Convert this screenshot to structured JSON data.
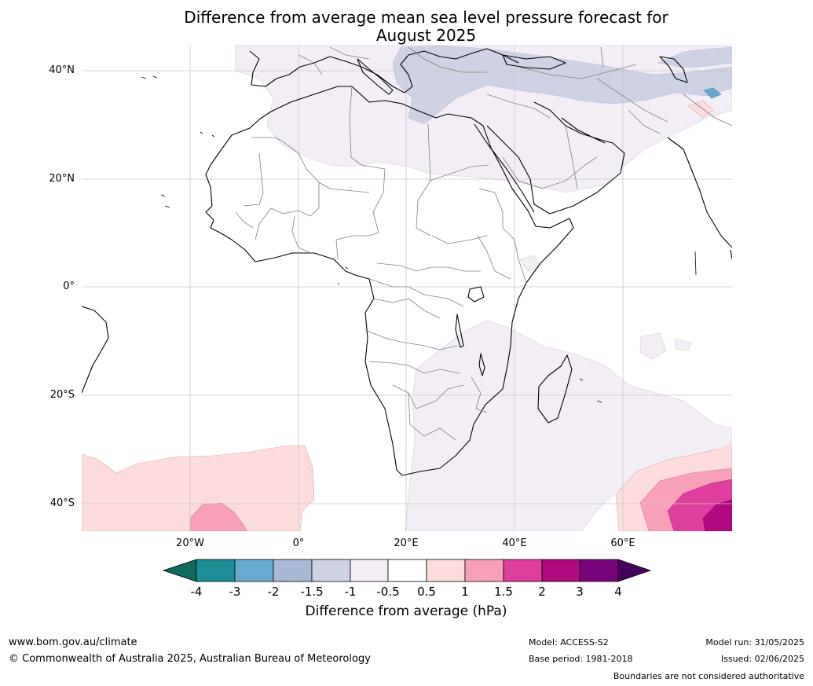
{
  "title": {
    "line1": "Difference from average mean sea level pressure forecast for",
    "line2": "August 2025"
  },
  "axes": {
    "lat_labels": [
      "40°N",
      "20°N",
      "0°",
      "20°S",
      "40°S"
    ],
    "lon_labels": [
      "20°W",
      "0°",
      "20°E",
      "40°E",
      "60°E"
    ]
  },
  "colorbar": {
    "title": "Difference from average (hPa)",
    "ticks": [
      "-4",
      "-3",
      "-2",
      "-1.5",
      "-1",
      "-0.5",
      "0.5",
      "1",
      "1.5",
      "2",
      "3",
      "4"
    ],
    "colors": [
      "#0f6b5d",
      "#1d8e96",
      "#68a9d0",
      "#a8b9d4",
      "#cfd1e4",
      "#f3edf5",
      "#ffffff",
      "#fcdcdc",
      "#f7a0b8",
      "#de3e9e",
      "#b0087e",
      "#78037a",
      "#460259"
    ]
  },
  "footer": {
    "url": "www.bom.gov.au/climate",
    "copyright": "© Commonwealth of Australia 2025, Australian Bureau of Meteorology",
    "model": "Model: ACCESS-S2",
    "base_period": "Base period: 1981-2018",
    "model_run": "Model run: 31/05/2025",
    "issued": "Issued: 02/06/2025",
    "disclaimer": "Boundaries are not considered authoritative"
  }
}
